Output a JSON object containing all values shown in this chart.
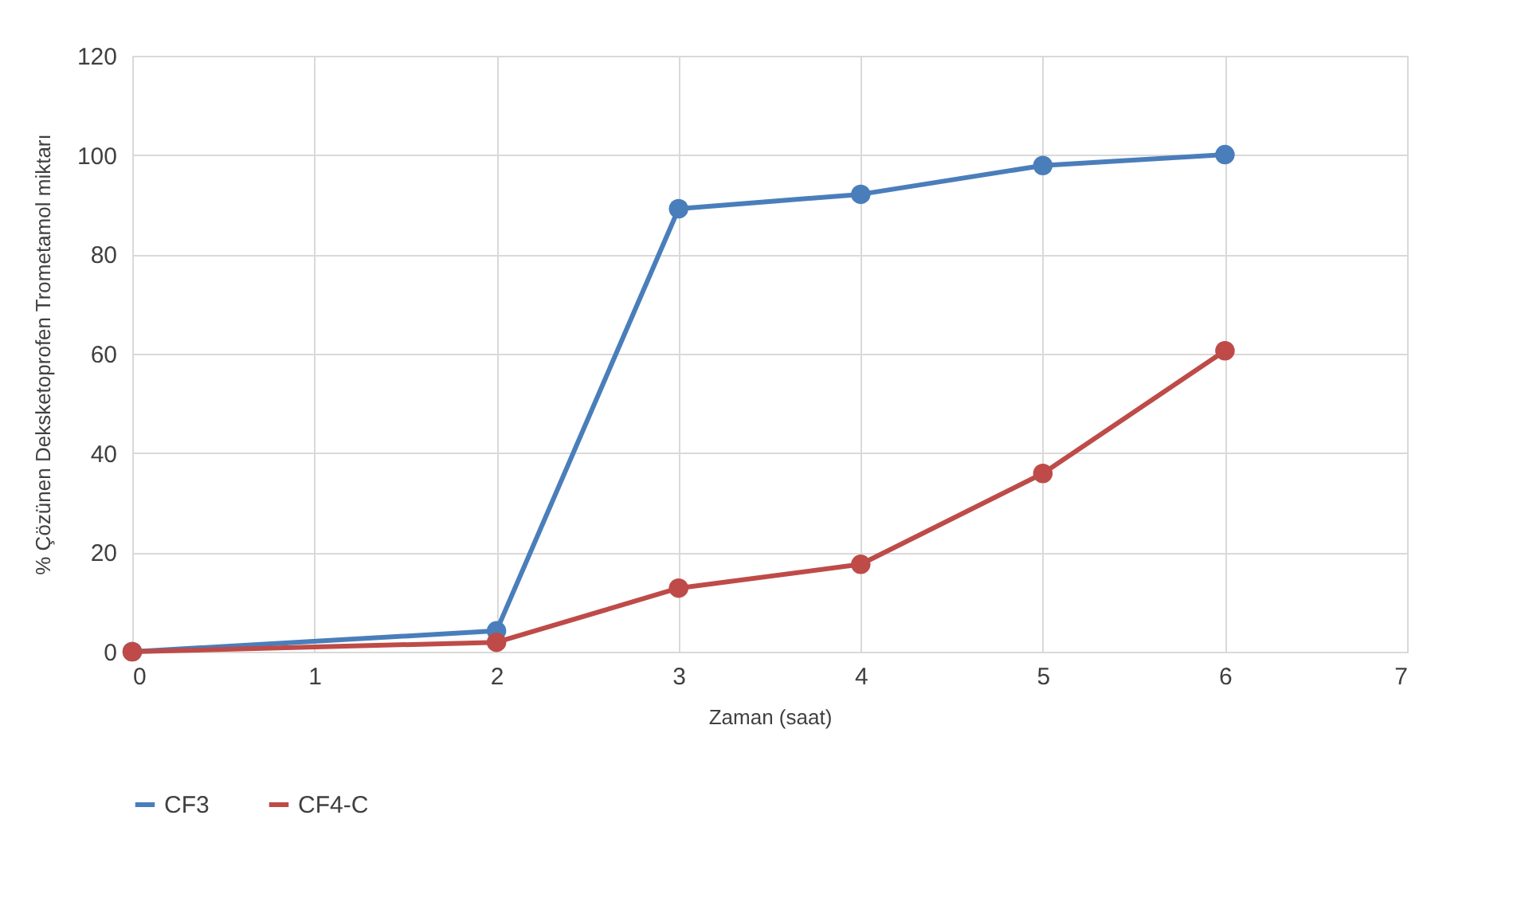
{
  "chart_data": {
    "type": "line",
    "xlabel": "Zaman (saat)",
    "ylabel": "% Çözünen Deksketoprofen Trometamol miktarı",
    "x": [
      0,
      2,
      3,
      4,
      5,
      6
    ],
    "series": [
      {
        "name": "CF3",
        "color": "#4a7ebb",
        "values": [
          0,
          4.2,
          89.2,
          92.1,
          97.9,
          100.1
        ]
      },
      {
        "name": "CF4-C",
        "color": "#be4b48",
        "values": [
          0,
          1.9,
          12.8,
          17.6,
          35.9,
          60.6
        ]
      }
    ],
    "xlim": [
      0,
      7
    ],
    "xticks": [
      0,
      1,
      2,
      3,
      4,
      5,
      6,
      7
    ],
    "ylim": [
      0,
      120
    ],
    "yticks": [
      0,
      20,
      40,
      60,
      80,
      100,
      120
    ],
    "grid": true,
    "legend": "bottom",
    "marker": "circle",
    "line_style": "solid"
  }
}
